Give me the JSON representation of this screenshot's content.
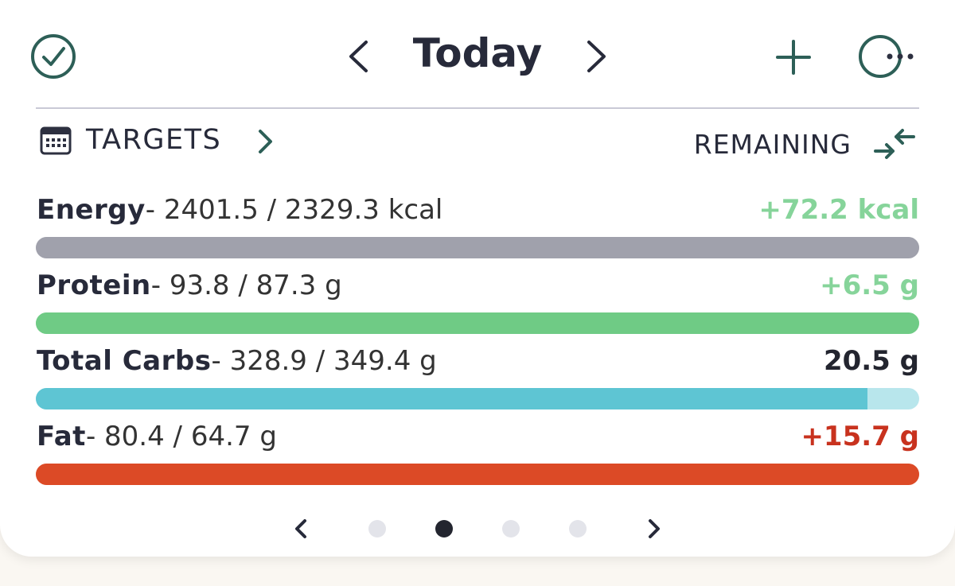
{
  "header": {
    "title": "Today"
  },
  "targets": {
    "label": "TARGETS",
    "mode": "REMAINING"
  },
  "separator": "/",
  "dash": "-",
  "rows": [
    {
      "name": "Energy",
      "consumed": 2401.5,
      "target": 2329.3,
      "unit": "kcal",
      "remaining": "+72.2 kcal",
      "bar_color": "#a0a1ac",
      "track_color": "#d6d7de",
      "remaining_color": "#86d49a"
    },
    {
      "name": "Protein",
      "consumed": 93.8,
      "target": 87.3,
      "unit": "g",
      "remaining": "+6.5 g",
      "bar_color": "#6fcb85",
      "track_color": "#c5ecd0",
      "remaining_color": "#86d49a"
    },
    {
      "name": "Total Carbs",
      "consumed": 328.9,
      "target": 349.4,
      "unit": "g",
      "remaining": "20.5 g",
      "bar_color": "#5ec5d3",
      "track_color": "#b8e6ec",
      "remaining_color": "#23252f"
    },
    {
      "name": "Fat",
      "consumed": 80.4,
      "target": 64.7,
      "unit": "g",
      "remaining": "+15.7 g",
      "bar_color": "#dc4a26",
      "track_color": "#f2c0b2",
      "remaining_color": "#c8321e"
    }
  ]
}
